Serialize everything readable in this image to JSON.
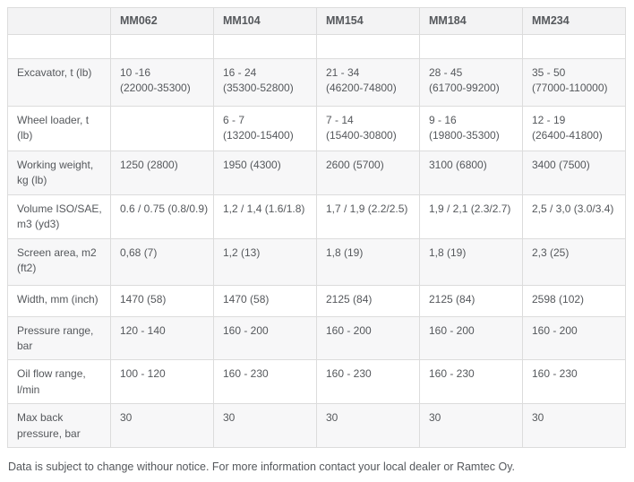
{
  "theme": {
    "header_bg": "#f3f3f4",
    "stripe_bg": "#f7f7f8",
    "border_color": "#dcdcdc",
    "text_color": "#55585c"
  },
  "table": {
    "columns": [
      "",
      "MM062",
      "MM104",
      "MM154",
      "MM184",
      "MM234"
    ],
    "rows": [
      {
        "label": "",
        "values": [
          "",
          "",
          "",
          "",
          ""
        ]
      },
      {
        "label": "Excavator, t (lb)",
        "values": [
          "10 -16\n(22000-35300)",
          "16 - 24\n(35300-52800)",
          "21 - 34\n(46200-74800)",
          "28 - 45\n(61700-99200)",
          "35 - 50\n(77000-110000)"
        ]
      },
      {
        "label": "Wheel loader, t (lb)",
        "values": [
          "",
          "6 - 7\n(13200-15400)",
          "7 - 14\n(15400-30800)",
          "9 - 16\n(19800-35300)",
          "12 - 19\n(26400-41800)"
        ]
      },
      {
        "label": "Working weight, kg (lb)",
        "values": [
          "1250 (2800)",
          "1950 (4300)",
          "2600 (5700)",
          "3100 (6800)",
          "3400 (7500)"
        ]
      },
      {
        "label": "Volume ISO/SAE, m3 (yd3)",
        "values": [
          "0.6 / 0.75 (0.8/0.9)",
          "1,2 / 1,4 (1.6/1.8)",
          "1,7 / 1,9 (2.2/2.5)",
          "1,9 / 2,1 (2.3/2.7)",
          "2,5 / 3,0 (3.0/3.4)"
        ]
      },
      {
        "label": "Screen area, m2 (ft2)",
        "values": [
          "0,68 (7)",
          "1,2 (13)",
          "1,8 (19)",
          "1,8 (19)",
          "2,3 (25)"
        ]
      },
      {
        "label": "Width, mm (inch)",
        "values": [
          "1470 (58)",
          "1470 (58)",
          "2125 (84)",
          "2125 (84)",
          "2598 (102)"
        ]
      },
      {
        "label": "Pressure range, bar",
        "values": [
          "120 - 140",
          "160 - 200",
          "160 - 200",
          "160 - 200",
          "160 - 200"
        ]
      },
      {
        "label": "Oil flow range, l/min",
        "values": [
          "100 - 120",
          "160 - 230",
          "160 - 230",
          "160 - 230",
          "160 - 230"
        ]
      },
      {
        "label": "Max back pressure, bar",
        "values": [
          "30",
          "30",
          "30",
          "30",
          "30"
        ]
      }
    ]
  },
  "footer": {
    "note": "Data is subject to change withour notice. For more information contact your local dealer or Ramtec Oy."
  }
}
